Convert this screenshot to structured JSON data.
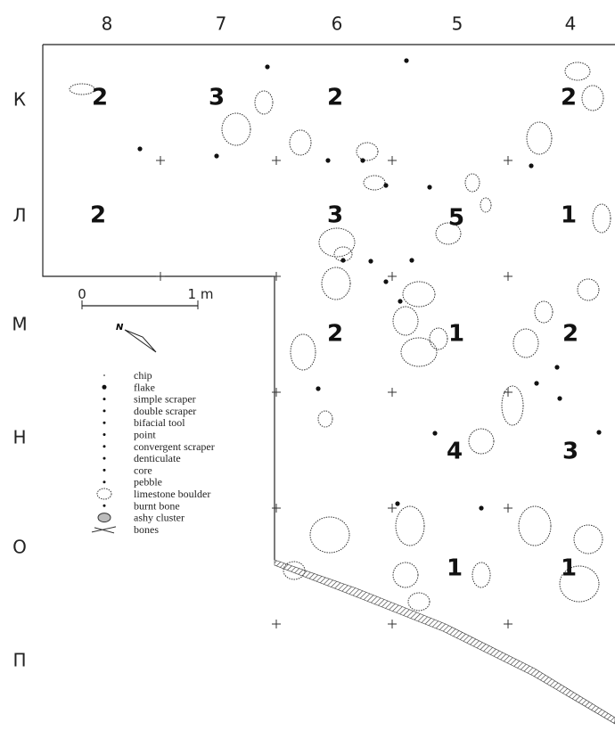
{
  "columns": [
    "8",
    "7",
    "6",
    "5",
    "4"
  ],
  "rows": [
    "К",
    "Л",
    "М",
    "Н",
    "О",
    "П"
  ],
  "square_numbers": [
    "2",
    "3",
    "2",
    "2",
    "2",
    "3",
    "5",
    "1",
    "2",
    "1",
    "2",
    "4",
    "3",
    "1",
    "1"
  ],
  "scale": {
    "start": "0",
    "end": "1 m"
  },
  "north": "N",
  "legend": [
    "chip",
    "flake",
    "simple scraper",
    "double scraper",
    "bifacial tool",
    "point",
    "convergent scraper",
    "denticulate",
    "core",
    "pebble",
    "limestone boulder",
    "burnt bone",
    "ashy cluster",
    "bones"
  ]
}
